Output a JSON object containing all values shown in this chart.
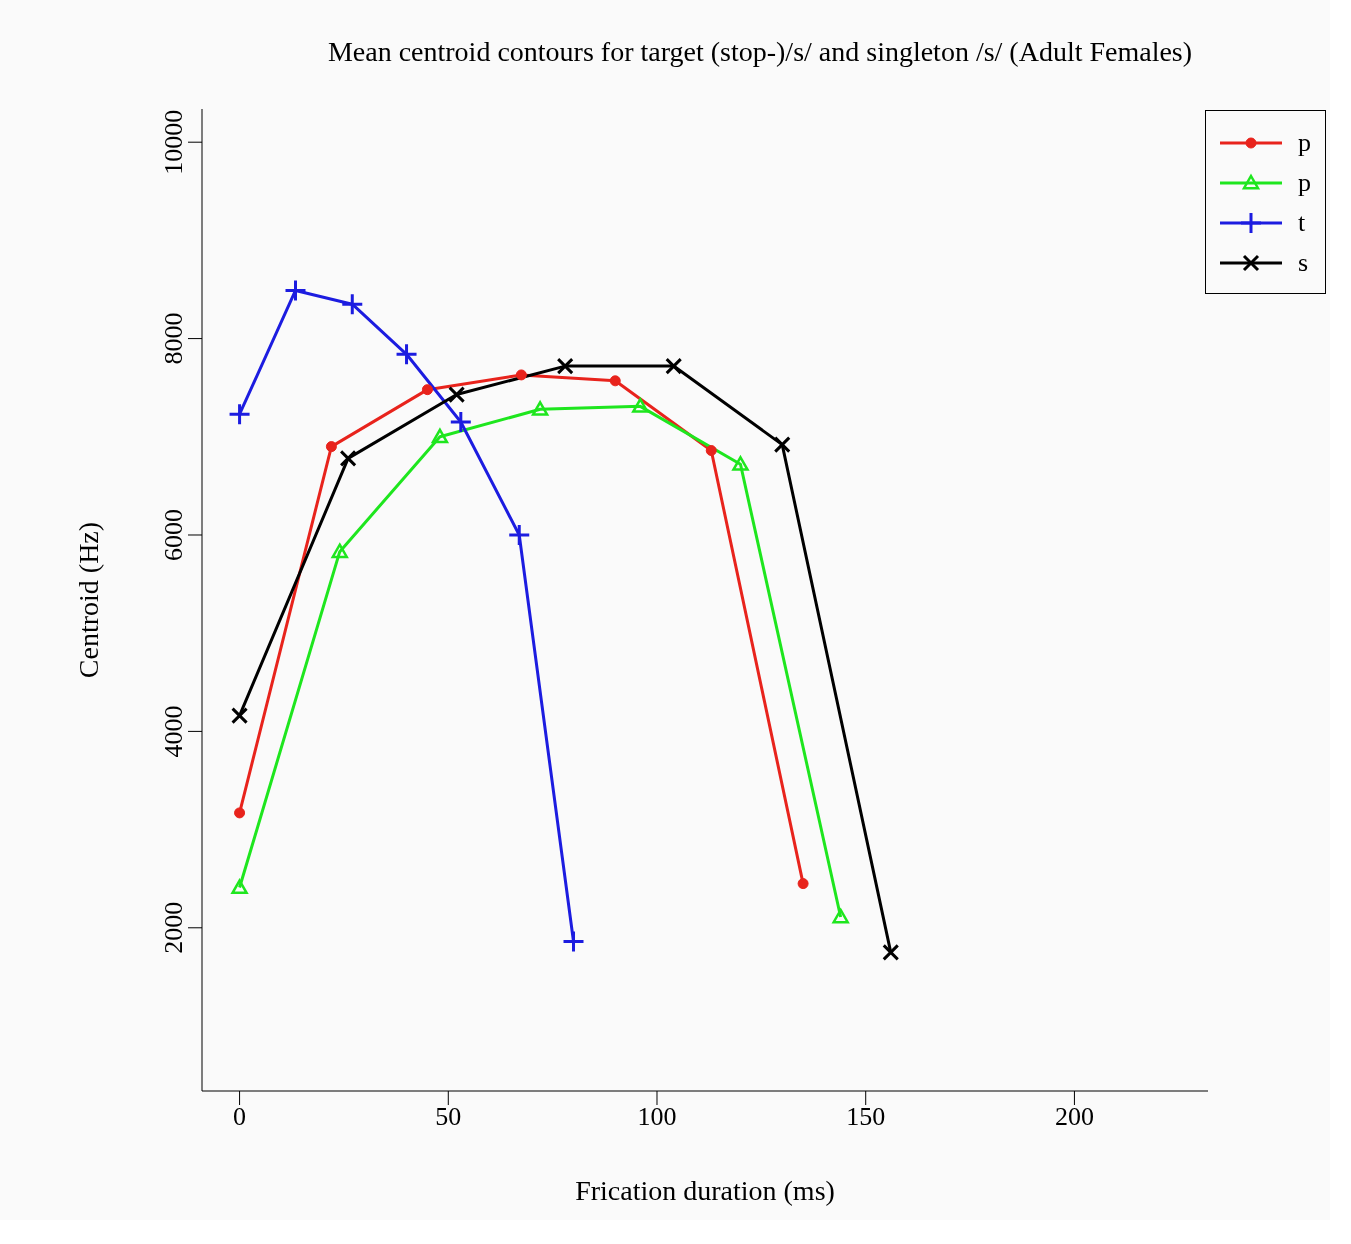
{
  "chart_data": {
    "type": "line",
    "title": "Mean centroid contours for target (stop-)/s/ and singleton /s/ (Adult Females)",
    "xlabel": "Frication duration (ms)",
    "ylabel": "Centroid (Hz)",
    "xlim": [
      -9,
      232
    ],
    "xticks": [
      0,
      50,
      100,
      150,
      200
    ],
    "ylim": [
      338,
      10338
    ],
    "yticks": [
      2000,
      4000,
      6000,
      8000,
      10000
    ],
    "legend": "top right",
    "line_style": "solid",
    "series": [
      {
        "name": "p",
        "color": "#e8231c",
        "marker": "circle",
        "x": [
          0,
          22,
          45,
          67.5,
          90,
          113,
          135
        ],
        "values": [
          3170,
          6900,
          7480,
          7630,
          7570,
          6860,
          2450
        ]
      },
      {
        "name": "p",
        "color": "#1ee61e",
        "marker": "triangle",
        "x": [
          0,
          24,
          48,
          72,
          96,
          120,
          144
        ],
        "values": [
          2410,
          5830,
          7000,
          7280,
          7310,
          6720,
          2110
        ]
      },
      {
        "name": "t",
        "color": "#1c1ce0",
        "marker": "cross",
        "x": [
          0,
          13.4,
          27,
          40,
          53,
          67,
          80
        ],
        "values": [
          7230,
          8490,
          8350,
          7840,
          7150,
          6000,
          1860
        ]
      },
      {
        "name": "s",
        "color": "#000000",
        "marker": "x",
        "x": [
          0,
          26,
          52,
          78,
          104,
          130,
          156
        ],
        "values": [
          4160,
          6780,
          7430,
          7720,
          7720,
          6920,
          1750
        ]
      }
    ]
  }
}
